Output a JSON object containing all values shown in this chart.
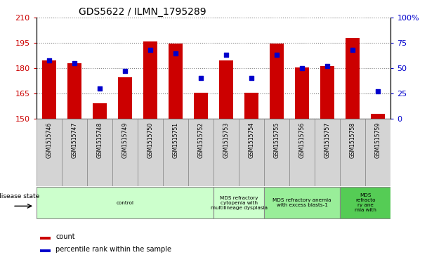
{
  "title": "GDS5622 / ILMN_1795289",
  "samples": [
    "GSM1515746",
    "GSM1515747",
    "GSM1515748",
    "GSM1515749",
    "GSM1515750",
    "GSM1515751",
    "GSM1515752",
    "GSM1515753",
    "GSM1515754",
    "GSM1515755",
    "GSM1515756",
    "GSM1515757",
    "GSM1515758",
    "GSM1515759"
  ],
  "counts": [
    184.5,
    183.0,
    159.0,
    174.5,
    196.0,
    194.5,
    165.5,
    184.5,
    165.5,
    194.5,
    180.5,
    181.5,
    198.0,
    153.0
  ],
  "percentile_ranks": [
    58,
    55,
    30,
    47,
    68,
    65,
    40,
    63,
    40,
    63,
    50,
    52,
    68,
    27
  ],
  "ylim_left": [
    150,
    210
  ],
  "ylim_right": [
    0,
    100
  ],
  "yticks_left": [
    150,
    165,
    180,
    195,
    210
  ],
  "yticks_right": [
    0,
    25,
    50,
    75,
    100
  ],
  "bar_color": "#cc0000",
  "marker_color": "#0000cc",
  "bar_bottom": 150,
  "groups": [
    {
      "label": "control",
      "start": 0,
      "end": 7,
      "color": "#ccffcc"
    },
    {
      "label": "MDS refractory\ncytopenia with\nmultilineage dysplasia",
      "start": 7,
      "end": 9,
      "color": "#88ee88"
    },
    {
      "label": "MDS refractory anemia\nwith excess blasts-1",
      "start": 9,
      "end": 12,
      "color": "#55cc55"
    },
    {
      "label": "MDS\nrefracto\nry ane\nmia with",
      "start": 12,
      "end": 14,
      "color": "#33bb33"
    }
  ],
  "legend_items": [
    {
      "label": "count",
      "color": "#cc0000"
    },
    {
      "label": "percentile rank within the sample",
      "color": "#0000cc"
    }
  ],
  "disease_state_label": "disease state",
  "background_color": "#ffffff",
  "tick_label_color_left": "#cc0000",
  "tick_label_color_right": "#0000cc",
  "plot_bg": "#ffffff",
  "tick_bg": "#d4d4d4",
  "group_bg_light": "#ccffcc",
  "group_bg_mid": "#99ee99",
  "group_bg_dark": "#55cc55"
}
